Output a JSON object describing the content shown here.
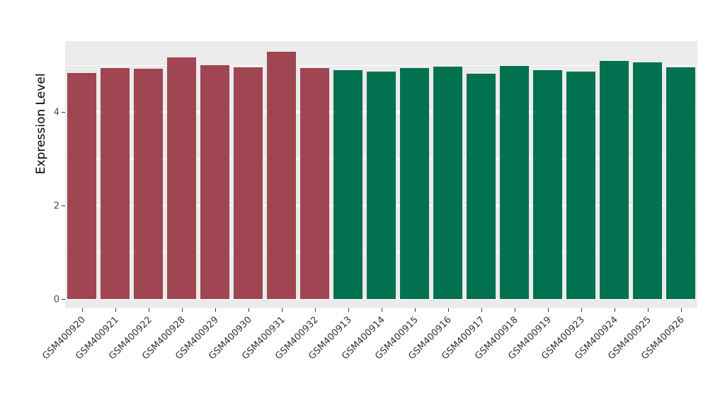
{
  "chart_data": {
    "type": "bar",
    "title": "",
    "xlabel": "",
    "ylabel": "Expression Level",
    "ylim": [
      0,
      5.5
    ],
    "yticks_major": [
      0,
      2,
      4
    ],
    "yticks_minor": [
      1,
      3,
      5
    ],
    "ytick_labels": [
      "0",
      "2",
      "4"
    ],
    "categories": [
      "GSM400920",
      "GSM400921",
      "GSM400922",
      "GSM400928",
      "GSM400929",
      "GSM400930",
      "GSM400931",
      "GSM400932",
      "GSM400913",
      "GSM400914",
      "GSM400915",
      "GSM400916",
      "GSM400917",
      "GSM400918",
      "GSM400919",
      "GSM400923",
      "GSM400924",
      "GSM400925",
      "GSM400926"
    ],
    "values": [
      4.83,
      4.94,
      4.92,
      5.17,
      5.0,
      4.95,
      5.29,
      4.94,
      4.89,
      4.86,
      4.94,
      4.97,
      4.82,
      4.98,
      4.89,
      4.86,
      5.09,
      5.06,
      4.95
    ],
    "groups": [
      "group1",
      "group1",
      "group1",
      "group1",
      "group1",
      "group1",
      "group1",
      "group1",
      "group2",
      "group2",
      "group2",
      "group2",
      "group2",
      "group2",
      "group2",
      "group2",
      "group2",
      "group2",
      "group2"
    ],
    "group_colors": {
      "group1": "#A04552",
      "group2": "#01714F"
    },
    "panel_background": "#EBEBEB",
    "grid_color": "#FFFFFF",
    "legend_position": "none"
  }
}
